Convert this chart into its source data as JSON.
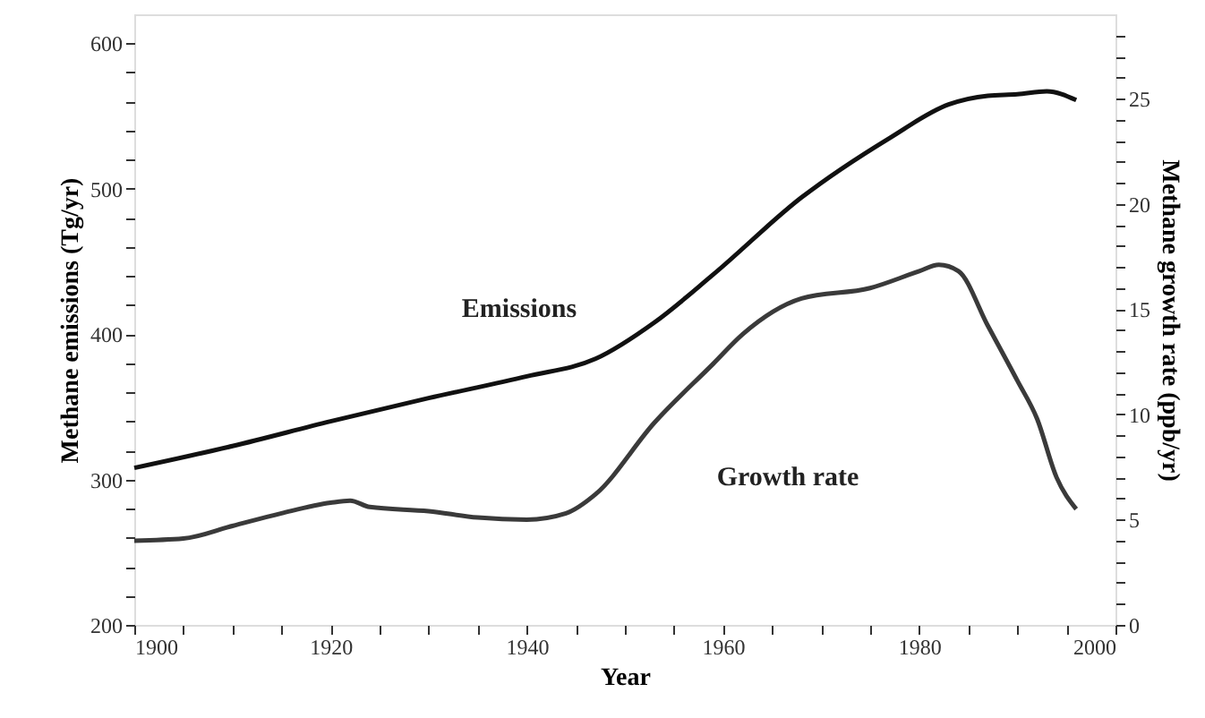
{
  "chart_data": {
    "type": "line",
    "xlabel": "Year",
    "ylabel": "Methane emissions (Tg/yr)",
    "y2label": "Methane growth rate (ppb/yr)",
    "xlim": [
      1900,
      2000
    ],
    "xticks": [
      1900,
      {
        "value": 1905,
        "label": null
      },
      {
        "value": 1910,
        "label": null
      },
      {
        "value": 1915,
        "label": null
      },
      1920,
      {
        "value": 1925,
        "label": null
      },
      {
        "value": 1930,
        "label": null
      },
      {
        "value": 1935,
        "label": null
      },
      1940,
      {
        "value": 1945,
        "label": null
      },
      {
        "value": 1950,
        "label": null
      },
      {
        "value": 1955,
        "label": null
      },
      1960,
      {
        "value": 1965,
        "label": null
      },
      {
        "value": 1970,
        "label": null
      },
      {
        "value": 1975,
        "label": null
      },
      1980,
      {
        "value": 1985,
        "label": null
      },
      {
        "value": 1990,
        "label": null
      },
      {
        "value": 1995,
        "label": null
      },
      2000
    ],
    "ylim": [
      200,
      620
    ],
    "yticks": [
      200,
      {
        "value": 220,
        "label": null
      },
      {
        "value": 240,
        "label": null
      },
      {
        "value": 260,
        "label": null
      },
      {
        "value": 280,
        "label": null
      },
      300,
      {
        "value": 320,
        "label": null
      },
      {
        "value": 340,
        "label": null
      },
      {
        "value": 360,
        "label": null
      },
      {
        "value": 380,
        "label": null
      },
      400,
      {
        "value": 420,
        "label": null
      },
      {
        "value": 440,
        "label": null
      },
      {
        "value": 460,
        "label": null
      },
      {
        "value": 480,
        "label": null
      },
      500,
      {
        "value": 520,
        "label": null
      },
      {
        "value": 540,
        "label": null
      },
      {
        "value": 560,
        "label": null
      },
      {
        "value": 580,
        "label": null
      },
      600
    ],
    "y2lim": [
      0,
      29
    ],
    "y2ticks": [
      0,
      {
        "value": 1,
        "label": null
      },
      {
        "value": 2,
        "label": null
      },
      {
        "value": 3,
        "label": null
      },
      {
        "value": 4,
        "label": null
      },
      5,
      {
        "value": 6,
        "label": null
      },
      {
        "value": 7,
        "label": null
      },
      {
        "value": 8,
        "label": null
      },
      {
        "value": 9,
        "label": null
      },
      10,
      {
        "value": 11,
        "label": null
      },
      {
        "value": 12,
        "label": null
      },
      {
        "value": 13,
        "label": null
      },
      {
        "value": 14,
        "label": null
      },
      15,
      {
        "value": 16,
        "label": null
      },
      {
        "value": 17,
        "label": null
      },
      {
        "value": 18,
        "label": null
      },
      {
        "value": 19,
        "label": null
      },
      20,
      {
        "value": 21,
        "label": null
      },
      {
        "value": 22,
        "label": null
      },
      {
        "value": 23,
        "label": null
      },
      {
        "value": 24,
        "label": null
      },
      25,
      {
        "value": 26,
        "label": null
      },
      {
        "value": 27,
        "label": null
      },
      {
        "value": 28,
        "label": null
      }
    ],
    "grid": false,
    "marker": "none",
    "line_style": "solid",
    "series": [
      {
        "color": "#111111",
        "x": [
          1900,
          1910,
          1920,
          1930,
          1940,
          1947,
          1953,
          1959,
          1968,
          1977,
          1983,
          1987,
          1990,
          1993,
          1996
        ],
        "values": [
          308,
          323,
          340,
          356,
          371,
          383,
          408,
          441,
          494,
          535,
          558,
          564,
          565,
          567,
          561
        ]
      },
      {
        "color": "#3a3a3a",
        "axis": "y2",
        "x": [
          1900,
          1905,
          1910,
          1915,
          1920,
          1922,
          1924,
          1930,
          1935,
          1940,
          1944,
          1947,
          1953,
          1959,
          1962,
          1968,
          1975,
          1980,
          1982,
          1984,
          1987,
          1990,
          1992,
          1994,
          1996
        ],
        "values": [
          4.0,
          4.1,
          4.7,
          5.3,
          5.8,
          5.9,
          5.6,
          5.4,
          5.1,
          5.0,
          5.3,
          6.2,
          9.6,
          12.4,
          13.8,
          15.5,
          16.0,
          16.8,
          17.1,
          16.8,
          14.2,
          11.6,
          9.8,
          7.0,
          5.5
        ]
      }
    ],
    "annotations": [
      "Emissions",
      "Growth rate"
    ]
  }
}
